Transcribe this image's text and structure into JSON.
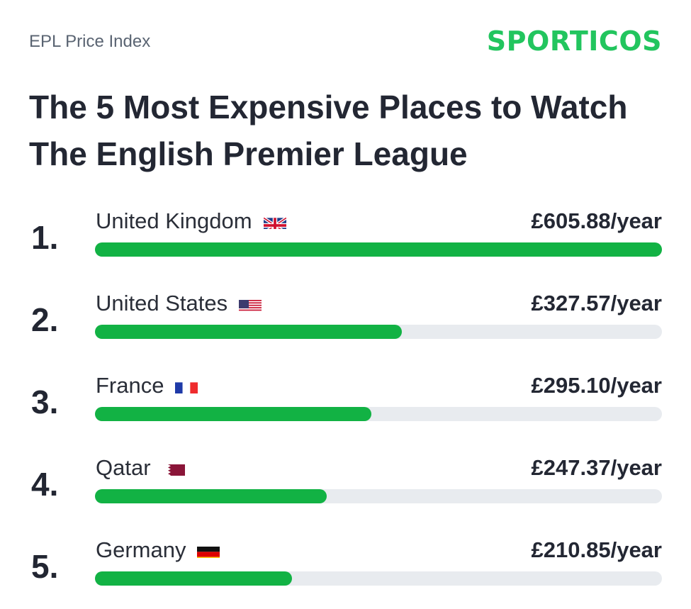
{
  "header": {
    "kicker": "EPL Price Index",
    "brand": "SPORTICOS",
    "title": "The 5 Most Expensive Places to Watch The English Premier League"
  },
  "colors": {
    "accent": "#12b244",
    "brand": "#22c55e",
    "track": "#e8ebef",
    "text": "#232733"
  },
  "chart_data": {
    "type": "bar",
    "orientation": "horizontal",
    "title": "The 5 Most Expensive Places to Watch The English Premier League",
    "categories": [
      "United Kingdom",
      "United States",
      "France",
      "Qatar",
      "Germany"
    ],
    "values": [
      605.88,
      327.57,
      295.1,
      247.37,
      210.85
    ],
    "ranks": [
      "1.",
      "2.",
      "3.",
      "4.",
      "5."
    ],
    "data_labels": [
      "£605.88/year",
      "£327.57/year",
      "£295.10/year",
      "£247.37/year",
      "£210.85/year"
    ],
    "flags": [
      "uk-flag-icon",
      "us-flag-icon",
      "france-flag-icon",
      "qatar-flag-icon",
      "germany-flag-icon"
    ],
    "xlim": [
      0,
      605.88
    ],
    "grid": false,
    "legend": "none"
  }
}
